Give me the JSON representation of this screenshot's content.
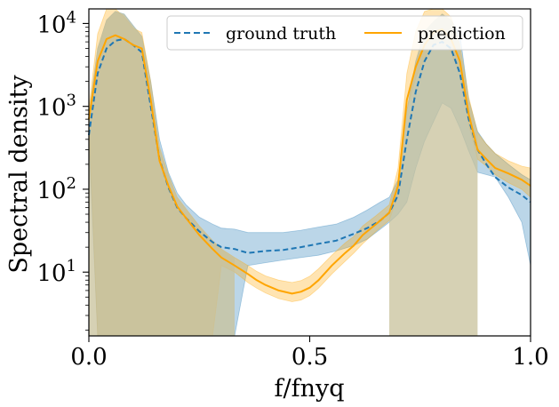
{
  "chart_data": {
    "type": "line",
    "xlabel": "f/fnyq",
    "ylabel": "Spectral density",
    "x_range": [
      0.0,
      1.0
    ],
    "y_range": [
      1.7,
      15000
    ],
    "y_scale": "log",
    "x_ticks": [
      {
        "value": 0.0,
        "label": "0.0"
      },
      {
        "value": 0.5,
        "label": "0.5"
      },
      {
        "value": 1.0,
        "label": "1.0"
      }
    ],
    "y_ticks": [
      {
        "value": 10,
        "base": "10",
        "exp": "1"
      },
      {
        "value": 100,
        "base": "10",
        "exp": "2"
      },
      {
        "value": 1000,
        "base": "10",
        "exp": "3"
      },
      {
        "value": 10000,
        "base": "10",
        "exp": "4"
      }
    ],
    "legend_position": "top-right",
    "grid": false,
    "series": [
      {
        "name": "ground truth",
        "color": "#1f77b4",
        "style": "dashed",
        "band_color": "#1f77b4",
        "x": [
          0.0,
          0.02,
          0.04,
          0.06,
          0.08,
          0.1,
          0.12,
          0.14,
          0.16,
          0.18,
          0.2,
          0.22,
          0.25,
          0.28,
          0.3,
          0.33,
          0.36,
          0.4,
          0.44,
          0.48,
          0.52,
          0.56,
          0.6,
          0.63,
          0.66,
          0.68,
          0.7,
          0.72,
          0.74,
          0.76,
          0.78,
          0.8,
          0.82,
          0.84,
          0.86,
          0.88,
          0.9,
          0.92,
          0.95,
          0.98,
          1.0
        ],
        "y": [
          450,
          2500,
          5000,
          6200,
          6500,
          5500,
          4500,
          1000,
          230,
          105,
          60,
          45,
          31,
          23,
          20,
          19,
          17,
          18,
          18.5,
          20,
          22,
          24,
          29,
          34,
          42,
          52,
          85,
          400,
          1500,
          3500,
          5500,
          6000,
          5000,
          2500,
          700,
          300,
          200,
          140,
          105,
          85,
          70
        ],
        "lower": [
          400,
          1.7,
          1.7,
          1.7,
          1.7,
          1.7,
          1.7,
          1.7,
          1.7,
          1.7,
          1.7,
          1.7,
          1.7,
          1.7,
          1.7,
          1.7,
          12,
          13,
          14,
          15,
          16,
          18,
          21,
          25,
          33,
          40,
          50,
          70,
          180,
          380,
          650,
          1100,
          950,
          550,
          290,
          160,
          150,
          140,
          80,
          40,
          12
        ],
        "upper": [
          800,
          5000,
          11000,
          14000,
          13000,
          9500,
          7000,
          2000,
          400,
          160,
          90,
          65,
          46,
          38,
          34,
          33,
          30,
          30,
          30,
          32,
          35,
          38,
          46,
          56,
          70,
          80,
          130,
          900,
          3500,
          8000,
          10500,
          13000,
          11000,
          7500,
          1200,
          500,
          350,
          270,
          200,
          150,
          130
        ]
      },
      {
        "name": "prediction",
        "color": "#ffa500",
        "style": "solid",
        "band_color": "#ffa500",
        "x": [
          0.0,
          0.02,
          0.04,
          0.06,
          0.08,
          0.1,
          0.12,
          0.14,
          0.16,
          0.18,
          0.2,
          0.22,
          0.25,
          0.28,
          0.3,
          0.33,
          0.36,
          0.38,
          0.4,
          0.43,
          0.46,
          0.48,
          0.5,
          0.52,
          0.55,
          0.58,
          0.6,
          0.62,
          0.65,
          0.68,
          0.7,
          0.72,
          0.74,
          0.76,
          0.78,
          0.8,
          0.82,
          0.84,
          0.86,
          0.88,
          0.9,
          0.92,
          0.95,
          0.98,
          1.0
        ],
        "y": [
          700,
          3500,
          6500,
          7200,
          6500,
          5500,
          5000,
          1200,
          220,
          110,
          62,
          45,
          28,
          19,
          15,
          12,
          9.5,
          8,
          7,
          6,
          5.5,
          5.8,
          6.5,
          8,
          12,
          17,
          21,
          28,
          38,
          52,
          110,
          1200,
          3000,
          5500,
          7800,
          8500,
          6500,
          3500,
          800,
          300,
          230,
          180,
          155,
          130,
          110
        ],
        "lower": [
          600,
          1.7,
          1.7,
          1.7,
          1.7,
          1.7,
          1.7,
          1.7,
          1.7,
          1.7,
          1.7,
          1.7,
          1.7,
          1.7,
          12,
          10,
          7.5,
          6.4,
          5.6,
          4.8,
          4.4,
          4.6,
          5.2,
          6.4,
          9.5,
          13.5,
          17,
          22,
          31,
          42,
          85,
          900,
          2200,
          3800,
          5200,
          6500,
          4500,
          2500,
          600,
          230,
          190,
          150,
          120,
          100,
          80
        ],
        "upper": [
          950,
          7500,
          15000,
          15000,
          12000,
          8800,
          7800,
          2000,
          320,
          150,
          80,
          58,
          36,
          24,
          19,
          15,
          12,
          10.2,
          9,
          8,
          7.5,
          7.9,
          8.9,
          11,
          16,
          22.5,
          27,
          36,
          48,
          65,
          180,
          2500,
          8000,
          14000,
          15000,
          15000,
          12000,
          5500,
          1300,
          480,
          350,
          270,
          220,
          190,
          180
        ]
      }
    ],
    "layers": [
      {
        "name": "background-region",
        "fill_color": "#c8c29b",
        "spans": [
          {
            "x": [
              0.0,
              0.02,
              0.04,
              0.06,
              0.08,
              0.1,
              0.12,
              0.14,
              0.16,
              0.18,
              0.2,
              0.22,
              0.25,
              0.28,
              0.3,
              0.33
            ],
            "upper": [
              800,
              5000,
              11000,
              14000,
              13000,
              9500,
              7000,
              2000,
              320,
              150,
              80,
              58,
              36,
              24,
              19,
              15
            ]
          },
          {
            "x": [
              0.68,
              0.7,
              0.72,
              0.74,
              0.76,
              0.78,
              0.8,
              0.82,
              0.84,
              0.86,
              0.88
            ],
            "upper": [
              65,
              130,
              900,
              3500,
              8000,
              10500,
              13000,
              11000,
              5500,
              1200,
              480
            ]
          }
        ]
      }
    ]
  }
}
